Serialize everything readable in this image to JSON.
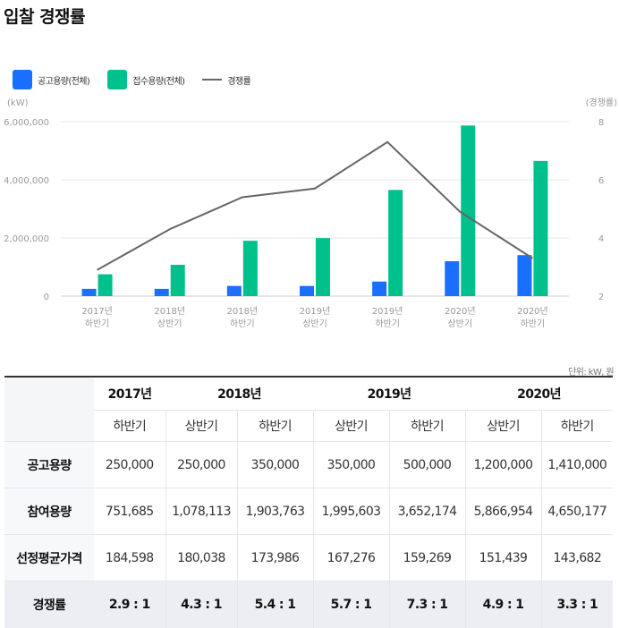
{
  "title": "입찰 경쟁률",
  "legend": {
    "bid": "공고용량(전체)",
    "apply": "접수용량(전체)",
    "rate": "경쟁률"
  },
  "colors": {
    "bid": "#1a6fff",
    "apply": "#00c08b",
    "rate": "#666666"
  },
  "chart_data": {
    "type": "bar",
    "categories": [
      [
        "2017년",
        "하반기"
      ],
      [
        "2018년",
        "상반기"
      ],
      [
        "2018년",
        "하반기"
      ],
      [
        "2019년",
        "상반기"
      ],
      [
        "2019년",
        "하반기"
      ],
      [
        "2020년",
        "상반기"
      ],
      [
        "2020년",
        "하반기"
      ]
    ],
    "series": [
      {
        "name": "공고용량(전체)",
        "values": [
          250000,
          250000,
          350000,
          350000,
          500000,
          1200000,
          1410000
        ]
      },
      {
        "name": "접수용량(전체)",
        "values": [
          751685,
          1078113,
          1903763,
          1995603,
          3652174,
          5866954,
          4650177
        ]
      }
    ],
    "line_series": {
      "name": "경쟁률",
      "values": [
        2.9,
        4.3,
        5.4,
        5.7,
        7.3,
        4.9,
        3.3
      ]
    },
    "y_left": {
      "unit": "(kW)",
      "ylim": [
        0,
        6000000
      ],
      "ticks": [
        "0",
        "2,000,000",
        "4,000,000",
        "6,000,000"
      ]
    },
    "y_right": {
      "unit": "(경쟁률)",
      "ylim": [
        2,
        8
      ],
      "ticks": [
        "2",
        "4",
        "6",
        "8"
      ]
    },
    "grid": true,
    "legend_position": "top-left"
  },
  "table": {
    "unit_note": "단위: kW, 원",
    "years": [
      "2017년",
      "2018년",
      "2019년",
      "2020년"
    ],
    "halves": [
      "하반기",
      "상반기",
      "하반기",
      "상반기",
      "하반기",
      "상반기",
      "하반기"
    ],
    "rows": [
      {
        "label": "공고용량",
        "values": [
          "250,000",
          "250,000",
          "350,000",
          "350,000",
          "500,000",
          "1,200,000",
          "1,410,000"
        ]
      },
      {
        "label": "참여용량",
        "values": [
          "751,685",
          "1,078,113",
          "1,903,763",
          "1,995,603",
          "3,652,174",
          "5,866,954",
          "4,650,177"
        ]
      },
      {
        "label": "선정평균가격",
        "values": [
          "184,598",
          "180,038",
          "173,986",
          "167,276",
          "159,269",
          "151,439",
          "143,682"
        ]
      },
      {
        "label": "경쟁률",
        "values": [
          "2.9 : 1",
          "4.3 : 1",
          "5.4 : 1",
          "5.7 : 1",
          "7.3 : 1",
          "4.9 : 1",
          "3.3 : 1"
        ]
      }
    ]
  }
}
